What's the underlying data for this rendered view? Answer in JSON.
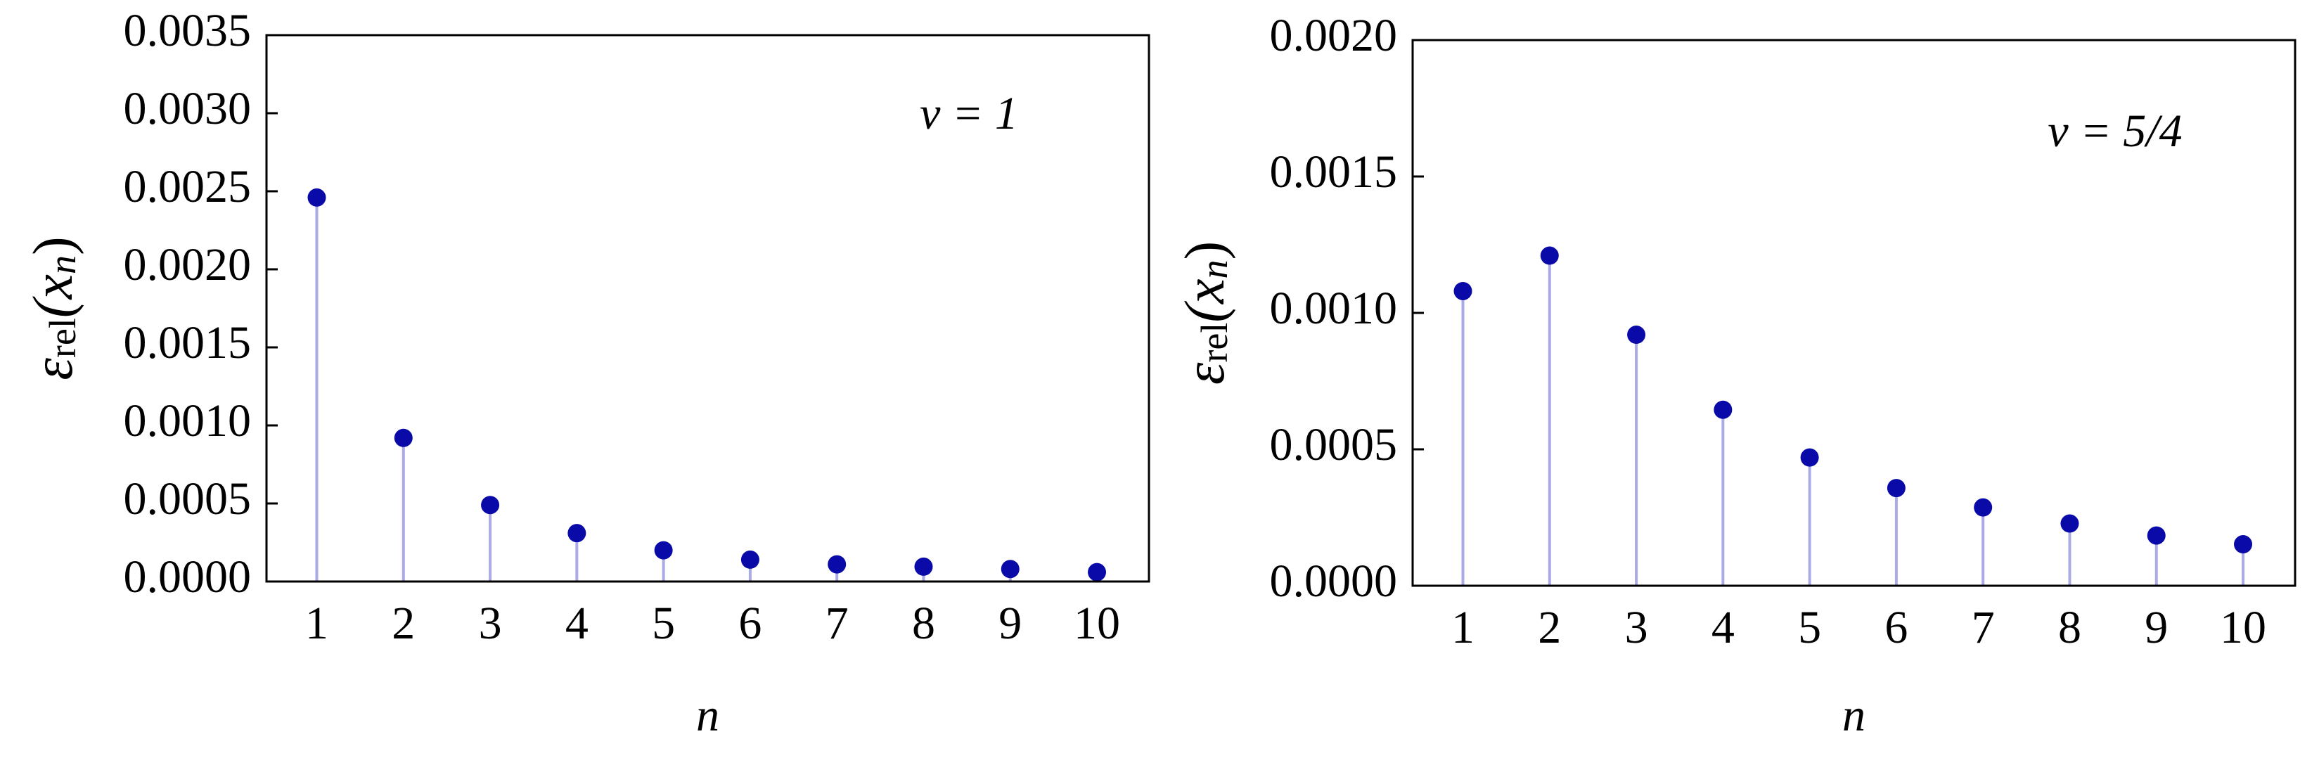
{
  "chart_data": [
    {
      "type": "stem",
      "annotation": "ν = 1",
      "xlabel": "n",
      "ylabel_parts": [
        "ε",
        "rel",
        "(x",
        "n",
        ")"
      ],
      "x": [
        1,
        2,
        3,
        4,
        5,
        6,
        7,
        8,
        9,
        10
      ],
      "values": [
        0.00246,
        0.00092,
        0.00049,
        0.00031,
        0.0002,
        0.00014,
        0.00011,
        9.5e-05,
        8e-05,
        6e-05
      ],
      "color": "#0a0aa8",
      "stem_color": "#aaaae6",
      "xlim": [
        0.42,
        10.6
      ],
      "xticks": [
        1,
        2,
        3,
        4,
        5,
        6,
        7,
        8,
        9,
        10
      ],
      "ylim": [
        0,
        0.0035
      ],
      "yticks": [
        {
          "value": 0,
          "label": "0.0000"
        },
        0.0005,
        {
          "value": 0.001,
          "label": "0.0010"
        },
        0.0015,
        {
          "value": 0.002,
          "label": "0.0020"
        },
        0.0025,
        {
          "value": 0.003,
          "label": "0.0030"
        },
        0.0035
      ]
    },
    {
      "type": "stem",
      "annotation": "ν = 5/4",
      "xlabel": "n",
      "ylabel_parts": [
        "ε",
        "rel",
        "(x",
        "n",
        ")"
      ],
      "x": [
        1,
        2,
        3,
        4,
        5,
        6,
        7,
        8,
        9,
        10
      ],
      "values": [
        0.00108,
        0.00121,
        0.00092,
        0.000645,
        0.00047,
        0.000358,
        0.000287,
        0.000228,
        0.000184,
        0.000152
      ],
      "color": "#0a0aa8",
      "stem_color": "#aaaae6",
      "xlim": [
        0.42,
        10.6
      ],
      "xticks": [
        1,
        2,
        3,
        4,
        5,
        6,
        7,
        8,
        9,
        10
      ],
      "ylim": [
        0,
        0.002
      ],
      "yticks": [
        {
          "value": 0,
          "label": "0.0000"
        },
        0.0005,
        {
          "value": 0.001,
          "label": "0.0010"
        },
        0.0015,
        {
          "value": 0.002,
          "label": "0.0020"
        }
      ]
    }
  ]
}
